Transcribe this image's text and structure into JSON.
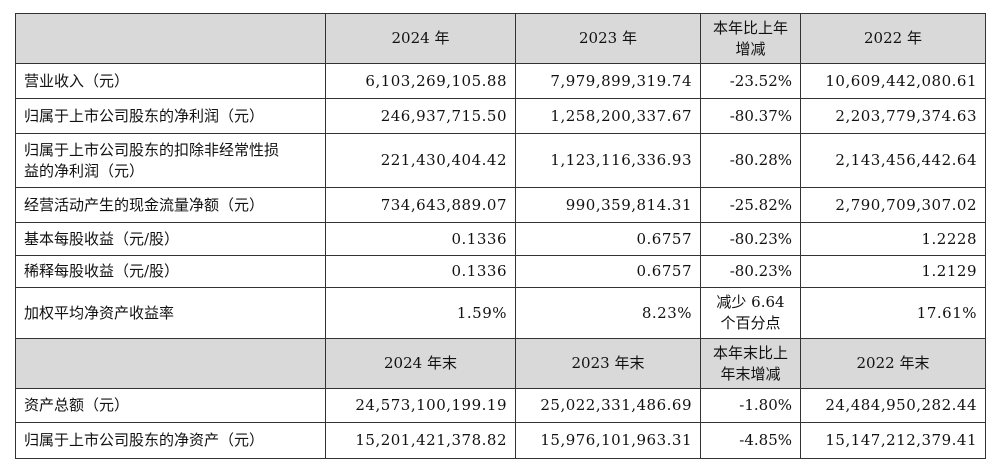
{
  "table": {
    "header": [
      "2024 年",
      "2023 年",
      "本年比上年增减",
      "2022 年"
    ],
    "rows": [
      [
        "营业收入（元）",
        "6,103,269,105.88",
        "7,979,899,319.74",
        "-23.52%",
        "10,609,442,080.61"
      ],
      [
        "归属于上市公司股东的净利润（元）",
        "246,937,715.50",
        "1,258,200,337.67",
        "-80.37%",
        "2,203,779,374.63"
      ],
      [
        "归属于上市公司股东的扣除非经常性损益的净利润（元）",
        "221,430,404.42",
        "1,123,116,336.93",
        "-80.28%",
        "2,143,456,442.64"
      ],
      [
        "经营活动产生的现金流量净额（元）",
        "734,643,889.07",
        "990,359,814.31",
        "-25.82%",
        "2,790,709,307.02"
      ],
      [
        "基本每股收益（元/股）",
        "0.1336",
        "0.6757",
        "-80.23%",
        "1.2228"
      ],
      [
        "稀释每股收益（元/股）",
        "0.1336",
        "0.6757",
        "-80.23%",
        "1.2129"
      ],
      [
        "加权平均净资产收益率",
        "1.59%",
        "8.23%",
        "减少 6.64 个百分点",
        "17.61%"
      ]
    ],
    "header2": [
      "2024 年末",
      "2023 年末",
      "本年末比上年末增减",
      "2022 年末"
    ],
    "rows2": [
      [
        "资产总额（元）",
        "24,573,100,199.19",
        "25,022,331,486.69",
        "-1.80%",
        "24,484,950,282.44"
      ],
      [
        "归属于上市公司股东的净资产（元）",
        "15,201,421,378.82",
        "15,976,101,963.31",
        "-4.85%",
        "15,147,212,379.41"
      ]
    ]
  }
}
